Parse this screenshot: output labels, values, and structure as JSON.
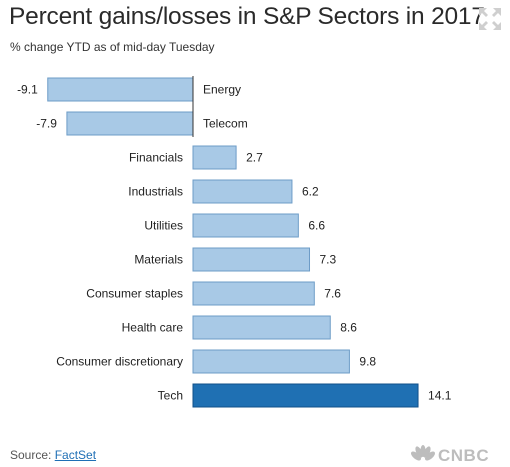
{
  "title": "Percent gains/losses in S&P Sectors in 2017",
  "subtitle": "% change YTD as of mid-day Tuesday",
  "source": {
    "prefix": "Source: ",
    "link_text": "FactSet"
  },
  "logo_text": "CNBC",
  "chart_data": {
    "type": "bar",
    "orientation": "horizontal",
    "title": "Percent gains/losses in S&P Sectors in 2017",
    "subtitle": "% change YTD as of mid-day Tuesday",
    "xlim": [
      -9.1,
      14.1
    ],
    "categories": [
      "Energy",
      "Telecom",
      "Financials",
      "Industrials",
      "Utilities",
      "Materials",
      "Consumer staples",
      "Health care",
      "Consumer discretionary",
      "Tech"
    ],
    "values": [
      -9.1,
      -7.9,
      2.7,
      6.2,
      6.6,
      7.3,
      7.6,
      8.6,
      9.8,
      14.1
    ],
    "value_labels": [
      "-9.1",
      "-7.9",
      "2.7",
      "6.2",
      "6.6",
      "7.3",
      "7.6",
      "8.6",
      "9.8",
      "14.1"
    ],
    "highlight": "Tech",
    "colors": {
      "bar": "#a8c9e6",
      "bar_stroke": "#6d9cc7",
      "highlight": "#1f70b3",
      "highlight_stroke": "#12508a",
      "axis": "#333333"
    }
  }
}
